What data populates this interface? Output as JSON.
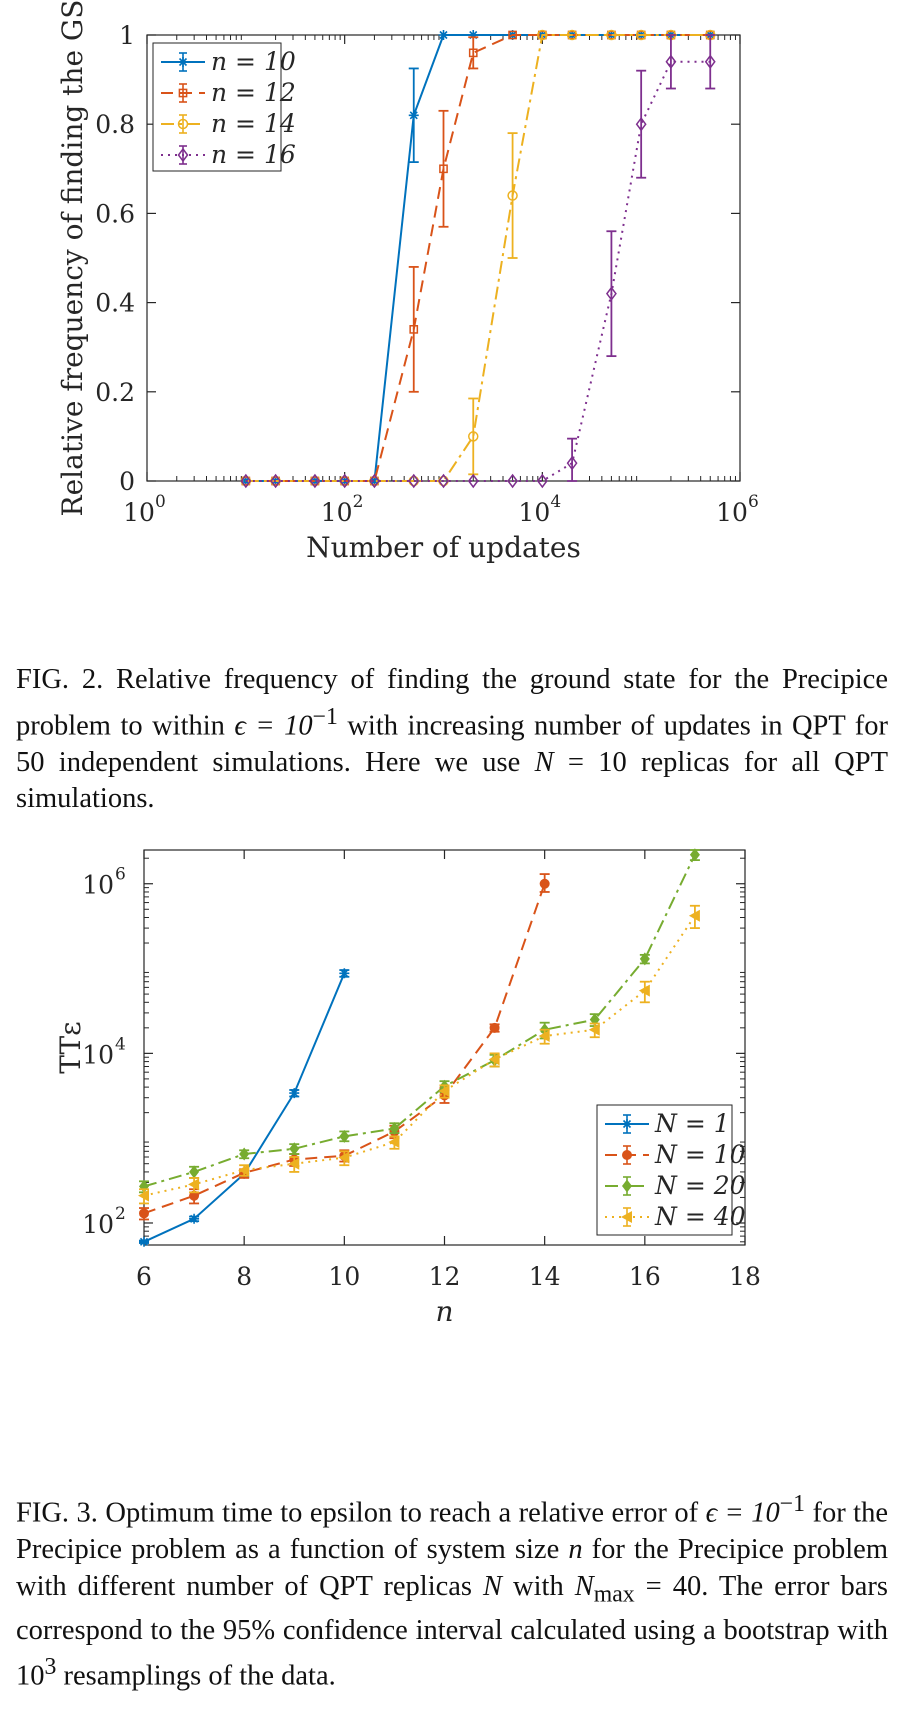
{
  "chart_data": [
    {
      "type": "line",
      "xlabel": "Number of updates",
      "ylabel": "Relative frequency of finding the GS",
      "xscale": "log",
      "xlim": [
        1,
        1000000
      ],
      "ylim": [
        0,
        1
      ],
      "xticks": [
        {
          "value": 1,
          "label": "10",
          "exp": "0"
        },
        {
          "value": 100,
          "label": "10",
          "exp": "2"
        },
        {
          "value": 10000,
          "label": "10",
          "exp": "4"
        },
        {
          "value": 1000000,
          "label": "10",
          "exp": "6"
        }
      ],
      "yticks": [
        {
          "value": 0,
          "label": "0"
        },
        {
          "value": 0.2,
          "label": "0.2"
        },
        {
          "value": 0.4,
          "label": "0.4"
        },
        {
          "value": 0.6,
          "label": "0.6"
        },
        {
          "value": 0.8,
          "label": "0.8"
        },
        {
          "value": 1,
          "label": "1"
        }
      ],
      "grid": false,
      "legend_position": "top-left",
      "series": [
        {
          "name": "n = 10",
          "color": "#0072BD",
          "dash": "solid",
          "marker": "star",
          "x": [
            10,
            20,
            50,
            100,
            200,
            500,
            1000,
            2000,
            5000,
            10000,
            20000,
            50000,
            100000,
            200000,
            500000
          ],
          "y": [
            0,
            0,
            0,
            0,
            0,
            0.82,
            1,
            1,
            1,
            1,
            1,
            1,
            1,
            1,
            1
          ],
          "err": [
            0,
            0,
            0,
            0,
            0,
            0.105,
            0,
            0,
            0,
            0,
            0,
            0,
            0,
            0,
            0
          ]
        },
        {
          "name": "n = 12",
          "color": "#D95319",
          "dash": "dashed",
          "marker": "square",
          "x": [
            10,
            20,
            50,
            100,
            200,
            500,
            1000,
            2000,
            5000,
            10000,
            20000,
            50000,
            100000,
            200000,
            500000
          ],
          "y": [
            0,
            0,
            0,
            0,
            0,
            0.34,
            0.7,
            0.96,
            1,
            1,
            1,
            1,
            1,
            1,
            1
          ],
          "err": [
            0,
            0,
            0,
            0,
            0,
            0.14,
            0.13,
            0.035,
            0,
            0,
            0,
            0,
            0,
            0,
            0
          ]
        },
        {
          "name": "n = 14",
          "color": "#EDB120",
          "dash": "dashdot",
          "marker": "circle",
          "x": [
            10,
            20,
            50,
            100,
            200,
            500,
            1000,
            2000,
            5000,
            10000,
            20000,
            50000,
            100000,
            200000,
            500000
          ],
          "y": [
            0,
            0,
            0,
            0,
            0,
            0,
            0,
            0.1,
            0.64,
            1,
            1,
            1,
            1,
            1,
            1
          ],
          "err": [
            0,
            0,
            0,
            0,
            0,
            0,
            0,
            0.085,
            0.14,
            0,
            0,
            0,
            0,
            0,
            0
          ]
        },
        {
          "name": "n = 16",
          "color": "#7E2F8E",
          "dash": "dotted",
          "marker": "diamond",
          "x": [
            10,
            20,
            50,
            100,
            200,
            500,
            1000,
            2000,
            5000,
            10000,
            20000,
            50000,
            100000,
            200000,
            500000
          ],
          "y": [
            0,
            0,
            0,
            0,
            0,
            0,
            0,
            0,
            0,
            0,
            0.04,
            0.42,
            0.8,
            0.94,
            0.94
          ],
          "err": [
            0,
            0,
            0,
            0,
            0,
            0,
            0,
            0,
            0,
            0,
            0.055,
            0.14,
            0.12,
            0.06,
            0.06
          ]
        }
      ]
    },
    {
      "type": "line",
      "xlabel": "n",
      "ylabel": "TTε",
      "yscale": "log",
      "xlim": [
        6,
        18
      ],
      "ylim": [
        55,
        2500000
      ],
      "xticks": [
        {
          "value": 6,
          "label": "6"
        },
        {
          "value": 8,
          "label": "8"
        },
        {
          "value": 10,
          "label": "10"
        },
        {
          "value": 12,
          "label": "12"
        },
        {
          "value": 14,
          "label": "14"
        },
        {
          "value": 16,
          "label": "16"
        },
        {
          "value": 18,
          "label": "18"
        }
      ],
      "yticks": [
        {
          "value": 100,
          "label": "10",
          "exp": "2"
        },
        {
          "value": 10000,
          "label": "10",
          "exp": "4"
        },
        {
          "value": 1000000,
          "label": "10",
          "exp": "6"
        }
      ],
      "grid": false,
      "legend_position": "bottom-right",
      "series": [
        {
          "name": "N = 1",
          "color": "#0072BD",
          "dash": "solid",
          "marker": "star",
          "x": [
            6,
            7,
            8,
            9,
            10
          ],
          "y": [
            60,
            112,
            380,
            3400,
            88000
          ],
          "lo": [
            58,
            105,
            350,
            3100,
            80000
          ],
          "hi": [
            62,
            119,
            410,
            3700,
            96000
          ]
        },
        {
          "name": "N = 10",
          "color": "#D95319",
          "dash": "dashed",
          "marker": "dot",
          "x": [
            6,
            7,
            8,
            9,
            10,
            11,
            12,
            13,
            14
          ],
          "y": [
            130,
            210,
            390,
            560,
            620,
            1200,
            3200,
            20000,
            1000000
          ],
          "lo": [
            110,
            170,
            340,
            470,
            530,
            1000,
            2600,
            18000,
            800000
          ],
          "hi": [
            150,
            250,
            430,
            650,
            720,
            1400,
            3900,
            22000,
            1300000
          ]
        },
        {
          "name": "N = 20",
          "color": "#77AC30",
          "dash": "dashdot",
          "marker": "diamond",
          "x": [
            6,
            7,
            8,
            9,
            10,
            11,
            12,
            13,
            14,
            15,
            16,
            17
          ],
          "y": [
            270,
            400,
            650,
            750,
            1050,
            1300,
            4100,
            8300,
            19000,
            25000,
            130000,
            2200000
          ],
          "lo": [
            230,
            340,
            580,
            650,
            920,
            1150,
            3500,
            7000,
            15000,
            21000,
            115000,
            1900000
          ],
          "hi": [
            310,
            460,
            720,
            850,
            1200,
            1500,
            4700,
            9600,
            23000,
            29000,
            145000,
            2500000
          ]
        },
        {
          "name": "N = 40",
          "color": "#EDB120",
          "dash": "dotted",
          "marker": "triangle-left",
          "x": [
            6,
            7,
            8,
            9,
            10,
            11,
            12,
            13,
            14,
            15,
            16,
            17
          ],
          "y": [
            210,
            285,
            420,
            500,
            590,
            900,
            3600,
            8500,
            16000,
            19000,
            55000,
            420000
          ],
          "lo": [
            170,
            230,
            360,
            400,
            480,
            750,
            3000,
            7000,
            13000,
            15500,
            40000,
            300000
          ],
          "hi": [
            250,
            340,
            480,
            600,
            700,
            1050,
            4200,
            10000,
            19000,
            22500,
            70000,
            550000
          ]
        }
      ]
    }
  ],
  "captions": {
    "fig2": {
      "label": "FIG. 2.",
      "text_a": " Relative frequency of finding the ground state for the Precipice problem to within ",
      "eps": "ϵ = 10",
      "eps_exp": "−1",
      "text_b": " with increasing number of updates in QPT for 50 independent simulations. Here we use ",
      "var": "N",
      "text_c": " = 10 replicas for all QPT simulations."
    },
    "fig3": {
      "label": "FIG. 3.",
      "text_a": " Optimum time to epsilon to reach a relative error of ",
      "eps": "ϵ = 10",
      "eps_exp": "−1",
      "text_b": " for the Precipice problem as a function of system size ",
      "var_n": "n",
      "text_c": " for the Precipice problem with different number of QPT replicas ",
      "var_N": "N",
      "text_d": " with ",
      "nmax": "N",
      "nmax_sub": "max",
      "text_e": " = 40. The error bars correspond to the 95% confidence interval calculated using a bootstrap with 10",
      "boot_exp": "3",
      "text_f": " resamplings of the data."
    }
  }
}
